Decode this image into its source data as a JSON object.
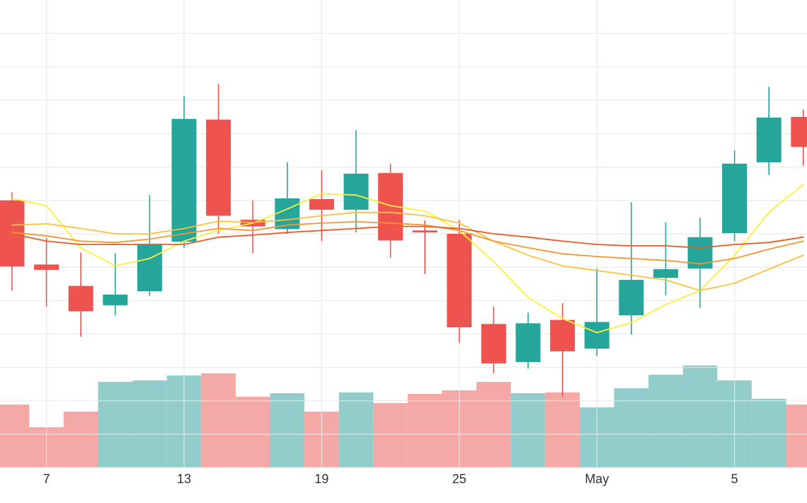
{
  "chart_data": {
    "type": "candlestick",
    "categories": [
      null,
      "7",
      null,
      null,
      null,
      "13",
      null,
      null,
      null,
      "19",
      null,
      null,
      null,
      "25",
      null,
      null,
      null,
      "May",
      null,
      null,
      null,
      "5",
      null,
      null
    ],
    "open": [
      40.0,
      30.4,
      27.2,
      24.3,
      26.4,
      33.8,
      52.1,
      37.1,
      35.7,
      40.2,
      38.6,
      44.1,
      35.5,
      35.0,
      21.5,
      15.8,
      22.1,
      17.8,
      22.8,
      28.4,
      29.8,
      35.1,
      45.7,
      52.5
    ],
    "high": [
      41.2,
      34.4,
      32.2,
      32.1,
      40.8,
      55.6,
      57.4,
      40.0,
      45.7,
      44.5,
      50.5,
      45.5,
      37.0,
      37.1,
      24.1,
      23.2,
      24.6,
      29.8,
      39.7,
      36.7,
      37.4,
      47.5,
      57.0,
      53.6
    ],
    "low": [
      26.5,
      24.1,
      19.6,
      22.8,
      25.7,
      32.9,
      35.0,
      32.1,
      35.0,
      33.9,
      35.2,
      31.4,
      29.0,
      18.7,
      14.1,
      14.8,
      10.5,
      16.7,
      19.9,
      25.8,
      23.9,
      33.9,
      43.8,
      45.2
    ],
    "close": [
      30.1,
      29.6,
      23.4,
      25.9,
      33.5,
      52.2,
      37.7,
      36.1,
      40.3,
      38.6,
      44.0,
      34.0,
      35.2,
      21.0,
      15.6,
      21.6,
      17.4,
      21.8,
      28.1,
      29.7,
      34.5,
      45.5,
      52.4,
      48.0
    ],
    "up_color": "#26a69a",
    "down_color": "#ef5350",
    "ylim": [
      0,
      70
    ],
    "yticks": [
      0,
      5,
      10,
      15,
      20,
      25,
      30,
      35,
      40,
      45,
      50,
      55,
      60,
      65
    ],
    "grid": true,
    "volume": {
      "values": [
        44.5,
        28.5,
        39.5,
        60.5,
        61.5,
        65,
        66.5,
        50,
        52.5,
        39.5,
        53,
        45.5,
        52,
        54.5,
        60.5,
        52.5,
        53,
        42.5,
        56,
        65.5,
        72,
        61.5,
        48.5,
        44.5
      ],
      "ylim": [
        0,
        100
      ],
      "up_color": "#92cdcc",
      "down_color": "#f5a9a6"
    },
    "moving_averages": [
      {
        "color": "#ffee3a",
        "values": [
          40.3,
          39.2,
          32.9,
          30.2,
          31.3,
          33.9,
          35.5,
          36.6,
          38.7,
          41.0,
          40.8,
          39.2,
          38.4,
          35.5,
          30.8,
          25.5,
          22.3,
          20.2,
          21.7,
          24.4,
          26.5,
          31.8,
          38.2,
          42.4
        ]
      },
      {
        "color": "#f9c23c",
        "values": [
          36.3,
          36.5,
          35.8,
          35.0,
          35.0,
          35.8,
          36.9,
          36.7,
          37.1,
          37.7,
          38.2,
          38.2,
          37.7,
          36.6,
          33.9,
          31.8,
          30.2,
          29.5,
          28.8,
          28.1,
          26.5,
          27.6,
          29.7,
          31.8
        ]
      },
      {
        "color": "#f7962e",
        "values": [
          35.2,
          34.7,
          33.9,
          33.7,
          34.2,
          35.0,
          35.8,
          35.5,
          36.3,
          36.6,
          36.8,
          36.6,
          36.3,
          35.5,
          33.9,
          32.9,
          32.0,
          31.6,
          31.3,
          31.0,
          30.5,
          31.3,
          32.7,
          33.9
        ]
      },
      {
        "color": "#ec5a24",
        "values": [
          35.0,
          33.9,
          33.4,
          33.4,
          33.4,
          33.4,
          34.5,
          34.8,
          35.2,
          35.5,
          35.8,
          36.1,
          36.1,
          35.8,
          35.0,
          34.5,
          33.9,
          33.4,
          33.2,
          33.2,
          32.9,
          33.4,
          33.7,
          34.5
        ]
      }
    ]
  }
}
